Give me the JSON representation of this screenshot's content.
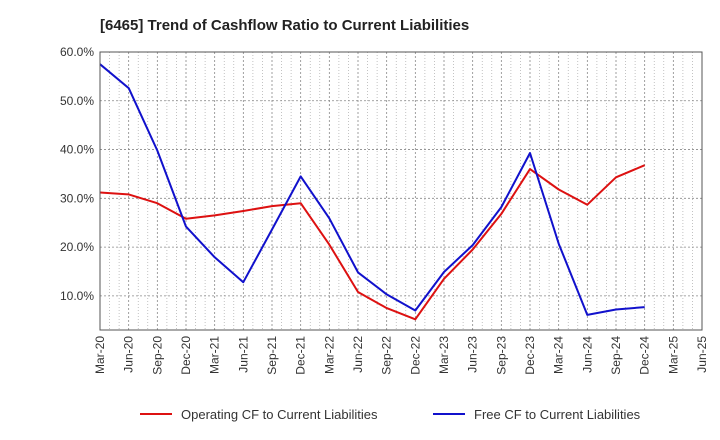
{
  "chart_data": {
    "type": "line",
    "title": "[6465]  Trend of Cashflow Ratio to Current Liabilities",
    "xlabel": "",
    "ylabel": "",
    "categories": [
      "Mar-20",
      "Jun-20",
      "Sep-20",
      "Dec-20",
      "Mar-21",
      "Jun-21",
      "Sep-21",
      "Dec-21",
      "Mar-22",
      "Jun-22",
      "Sep-22",
      "Dec-22",
      "Mar-23",
      "Jun-23",
      "Sep-23",
      "Dec-23",
      "Mar-24",
      "Jun-24",
      "Sep-24",
      "Dec-24",
      "Mar-25",
      "Jun-25"
    ],
    "ylim": [
      3.0,
      60.0
    ],
    "yticks": [
      10.0,
      20.0,
      30.0,
      40.0,
      50.0,
      60.0
    ],
    "ytick_labels": [
      "10.0%",
      "20.0%",
      "30.0%",
      "40.0%",
      "50.0%",
      "60.0%"
    ],
    "grid": true,
    "legend_position": "bottom",
    "series": [
      {
        "name": "Operating CF to Current Liabilities",
        "color": "#dd1111",
        "values": [
          31.2,
          30.8,
          29.0,
          25.8,
          26.5,
          27.4,
          28.4,
          29.0,
          20.5,
          10.8,
          7.5,
          5.2,
          13.5,
          19.5,
          26.8,
          36.0,
          31.8,
          28.7,
          34.3,
          36.8,
          null,
          null
        ]
      },
      {
        "name": "Free CF to Current Liabilities",
        "color": "#1111cc",
        "values": [
          57.5,
          52.6,
          39.8,
          24.2,
          17.9,
          12.8,
          23.6,
          34.5,
          25.9,
          14.8,
          10.3,
          7.0,
          14.9,
          20.4,
          28.2,
          39.3,
          20.7,
          6.1,
          7.2,
          7.7,
          null,
          null
        ]
      }
    ]
  }
}
